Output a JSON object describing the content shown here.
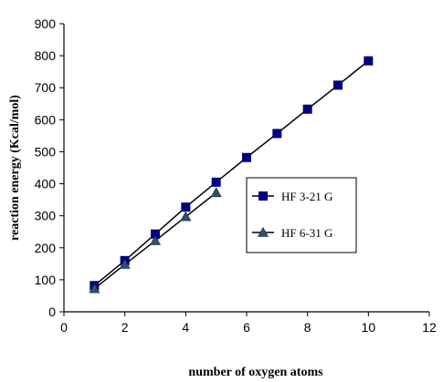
{
  "chart_data": {
    "type": "line",
    "xlabel": "number of oxygen atoms",
    "ylabel": "reaction energy (Kcal/mol)",
    "xlim": [
      0,
      12
    ],
    "ylim": [
      0,
      900
    ],
    "x_ticks": [
      "0",
      "2",
      "4",
      "6",
      "8",
      "10",
      "12"
    ],
    "y_ticks": [
      "0",
      "100",
      "200",
      "300",
      "400",
      "500",
      "600",
      "700",
      "800",
      "900"
    ],
    "grid": false,
    "legend_position": "center-right",
    "series": [
      {
        "name": "HF 3-21 G",
        "marker": "square",
        "color": "#000080",
        "x": [
          1,
          2,
          3,
          4,
          5,
          6,
          7,
          8,
          9,
          10
        ],
        "values": [
          82,
          160,
          243,
          327,
          405,
          482,
          557,
          633,
          708,
          784
        ]
      },
      {
        "name": "HF 6-31 G",
        "marker": "triangle",
        "color": "#2f4f6f",
        "x": [
          1,
          2,
          3,
          4,
          5
        ],
        "values": [
          72,
          148,
          222,
          297,
          372
        ]
      }
    ]
  }
}
